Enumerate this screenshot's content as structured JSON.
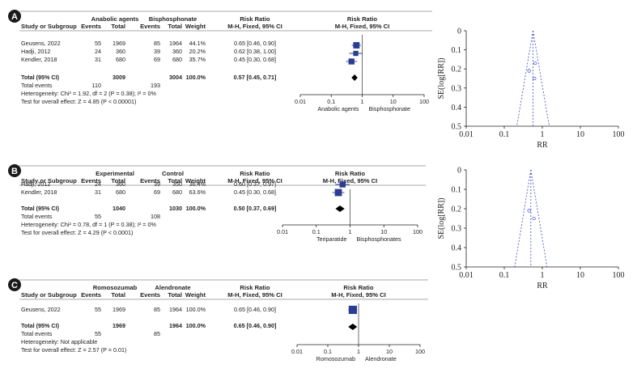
{
  "chart_data": [
    {
      "type": "forest",
      "label": "A",
      "group1": "Anabolic agents",
      "group2": "Bisphosphonate",
      "headers": {
        "study": "Study or Subgroup",
        "events": "Events",
        "total": "Total",
        "weight": "Weight",
        "rr_title": "Risk Ratio",
        "rr_sub": "M-H, Fixed, 95% CI"
      },
      "studies": [
        {
          "name": "Geusens, 2022",
          "e1": "55",
          "t1": "1969",
          "e2": "85",
          "t2": "1964",
          "weight": "44.1%",
          "ci_text": "0.65 [0.46, 0.90]",
          "rr": 0.65,
          "lo": 0.46,
          "hi": 0.9,
          "w": 44.1
        },
        {
          "name": "Hadji, 2012",
          "e1": "24",
          "t1": "360",
          "e2": "39",
          "t2": "360",
          "weight": "20.2%",
          "ci_text": "0.62 [0.38, 1.00]",
          "rr": 0.62,
          "lo": 0.38,
          "hi": 1.0,
          "w": 20.2
        },
        {
          "name": "Kendler, 2018",
          "e1": "31",
          "t1": "680",
          "e2": "69",
          "t2": "680",
          "weight": "35.7%",
          "ci_text": "0.45 [0.30, 0.68]",
          "rr": 0.45,
          "lo": 0.3,
          "hi": 0.68,
          "w": 35.7
        }
      ],
      "total": {
        "label": "Total (95% CI)",
        "t1": "3009",
        "t2": "3004",
        "weight": "100.0%",
        "ci_text": "0.57 [0.45, 0.71]",
        "rr": 0.57,
        "lo": 0.45,
        "hi": 0.71
      },
      "total_events": {
        "label": "Total events",
        "e1": "110",
        "e2": "193"
      },
      "heterogeneity": "Heterogeneity: Chi² = 1.92, df = 2 (P = 0.38); I² = 0%",
      "overall": "Test for overall effect: Z = 4.85 (P < 0.00001)",
      "axis_ticks": [
        "0.01",
        "0.1",
        "1",
        "10",
        "100"
      ],
      "axis_values": [
        0.01,
        0.1,
        1,
        10,
        100
      ],
      "favours_left": "Anabolic agents",
      "favours_right": "Bisphosphonate"
    },
    {
      "type": "forest",
      "label": "B",
      "group1": "Experimental",
      "group2": "Control",
      "headers": {
        "study": "Study or Subgroup",
        "events": "Events",
        "total": "Total",
        "weight": "Weight",
        "rr_title": "Risk Ratio",
        "rr_sub": "M-H, Fixed, 95% CI"
      },
      "studies": [
        {
          "name": "Hadji, 2012",
          "e1": "24",
          "t1": "360",
          "e2": "39",
          "t2": "350",
          "weight": "36.4%",
          "ci_text": "0.60 [0.37, 0.97]",
          "rr": 0.6,
          "lo": 0.37,
          "hi": 0.97,
          "w": 36.4
        },
        {
          "name": "Kendler, 2018",
          "e1": "31",
          "t1": "680",
          "e2": "69",
          "t2": "680",
          "weight": "63.6%",
          "ci_text": "0.45 [0.30, 0.68]",
          "rr": 0.45,
          "lo": 0.3,
          "hi": 0.68,
          "w": 63.6
        }
      ],
      "total": {
        "label": "Total (95% CI)",
        "t1": "1040",
        "t2": "1030",
        "weight": "100.0%",
        "ci_text": "0.50 [0.37, 0.69]",
        "rr": 0.5,
        "lo": 0.37,
        "hi": 0.69
      },
      "total_events": {
        "label": "Total events",
        "e1": "55",
        "e2": "108"
      },
      "heterogeneity": "Heterogeneity: Chi² = 0.78, df = 1 (P = 0.38); I² = 0%",
      "overall": "Test for overall effect: Z = 4.29 (P < 0.0001)",
      "axis_ticks": [
        "0.01",
        "0.1",
        "1",
        "10",
        "100"
      ],
      "axis_values": [
        0.01,
        0.1,
        1,
        10,
        100
      ],
      "favours_left": "Teriparatide",
      "favours_right": "Bisphosphonates"
    },
    {
      "type": "forest",
      "label": "C",
      "group1": "Romosozumab",
      "group2": "Alendronate",
      "headers": {
        "study": "Study or Subgroup",
        "events": "Events",
        "total": "Total",
        "weight": "Weight",
        "rr_title": "Risk Ratio",
        "rr_sub": "M-H, Fixed, 95% CI"
      },
      "studies": [
        {
          "name": "Geusens, 2022",
          "e1": "55",
          "t1": "1969",
          "e2": "85",
          "t2": "1964",
          "weight": "100.0%",
          "ci_text": "0.65 [0.46, 0.90]",
          "rr": 0.65,
          "lo": 0.46,
          "hi": 0.9,
          "w": 100.0
        }
      ],
      "total": {
        "label": "Total (95% CI)",
        "t1": "1969",
        "t2": "1964",
        "weight": "100.0%",
        "ci_text": "0.65 [0.46, 0.90]",
        "rr": 0.65,
        "lo": 0.46,
        "hi": 0.9
      },
      "total_events": {
        "label": "Total events",
        "e1": "55",
        "e2": "85"
      },
      "heterogeneity": "Heterogeneity: Not applicable",
      "overall": "Test for overall effect: Z = 2.57 (P = 0.01)",
      "axis_ticks": [
        "0.01",
        "0.1",
        "1",
        "10",
        "100"
      ],
      "axis_values": [
        0.01,
        0.1,
        1,
        10,
        100
      ],
      "favours_left": "Romosozumab",
      "favours_right": "Alendronate"
    },
    {
      "type": "scatter",
      "subtype": "funnel",
      "for": "A",
      "xlabel": "RR",
      "ylabel": "SE(log[RR])",
      "x_scale": "log",
      "xlim": [
        0.01,
        100
      ],
      "ylim": [
        0,
        0.5
      ],
      "x_ticks": [
        "0.01",
        "0.1",
        "1",
        "10",
        "100"
      ],
      "x_tick_values": [
        0.01,
        0.1,
        1,
        10,
        100
      ],
      "y_ticks": [
        "0",
        "0.1",
        "0.2",
        "0.3",
        "0.4",
        "0.5"
      ],
      "y_tick_values": [
        0,
        0.1,
        0.2,
        0.3,
        0.4,
        0.5
      ],
      "pooled_rr": 0.57,
      "points": [
        {
          "rr": 0.65,
          "se": 0.17
        },
        {
          "rr": 0.62,
          "se": 0.25
        },
        {
          "rr": 0.45,
          "se": 0.21
        }
      ]
    },
    {
      "type": "scatter",
      "subtype": "funnel",
      "for": "B",
      "xlabel": "RR",
      "ylabel": "SE(log[RR])",
      "x_scale": "log",
      "xlim": [
        0.01,
        100
      ],
      "ylim": [
        0,
        0.5
      ],
      "x_ticks": [
        "0.01",
        "0.1",
        "1",
        "10",
        "100"
      ],
      "x_tick_values": [
        0.01,
        0.1,
        1,
        10,
        100
      ],
      "y_ticks": [
        "0",
        "0.1",
        "0.2",
        "0.3",
        "0.4",
        "0.5"
      ],
      "y_tick_values": [
        0,
        0.1,
        0.2,
        0.3,
        0.4,
        0.5
      ],
      "pooled_rr": 0.5,
      "points": [
        {
          "rr": 0.6,
          "se": 0.25
        },
        {
          "rr": 0.45,
          "se": 0.21
        }
      ]
    }
  ]
}
